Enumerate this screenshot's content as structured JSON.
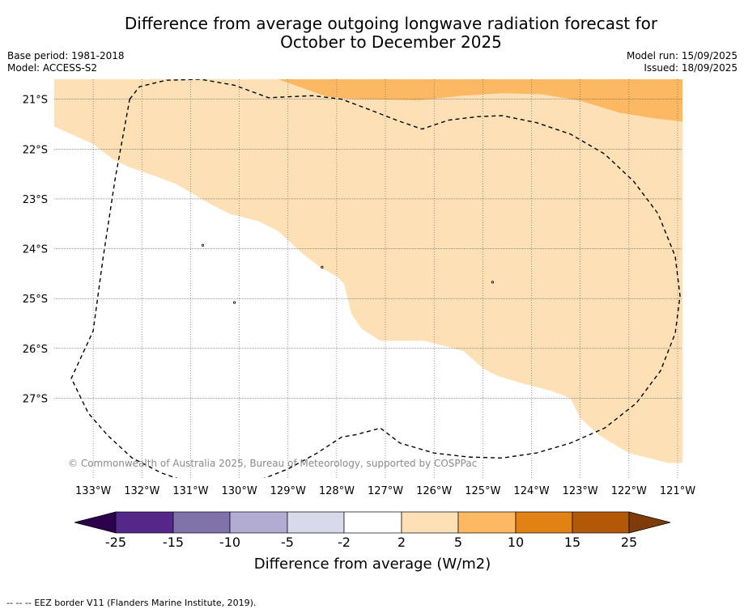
{
  "title": {
    "line1": "Difference from average outgoing longwave radiation forecast for",
    "line2": "October to December 2025"
  },
  "meta": {
    "base_period": "Base period: 1981-2018",
    "model": "Model: ACCESS-S2",
    "model_run": "Model run: 15/09/2025",
    "issued": "Issued: 18/09/2025"
  },
  "map": {
    "lon_range": [
      -133.8,
      -120.9
    ],
    "lat_range": [
      -28.6,
      -20.6
    ],
    "lon_ticks": [
      {
        "value": -133,
        "label": "133°W"
      },
      {
        "value": -132,
        "label": "132°W"
      },
      {
        "value": -131,
        "label": "131°W"
      },
      {
        "value": -130,
        "label": "130°W"
      },
      {
        "value": -129,
        "label": "129°W"
      },
      {
        "value": -128,
        "label": "128°W"
      },
      {
        "value": -127,
        "label": "127°W"
      },
      {
        "value": -126,
        "label": "126°W"
      },
      {
        "value": -125,
        "label": "125°W"
      },
      {
        "value": -124,
        "label": "124°W"
      },
      {
        "value": -123,
        "label": "123°W"
      },
      {
        "value": -122,
        "label": "122°W"
      },
      {
        "value": -121,
        "label": "121°W"
      }
    ],
    "lat_ticks": [
      {
        "value": -21,
        "label": "21°S"
      },
      {
        "value": -22,
        "label": "22°S"
      },
      {
        "value": -23,
        "label": "23°S"
      },
      {
        "value": -24,
        "label": "24°S"
      },
      {
        "value": -25,
        "label": "25°S"
      },
      {
        "value": -26,
        "label": "26°S"
      },
      {
        "value": -27,
        "label": "27°S"
      }
    ],
    "copyright": "© Commonwealth of Australia 2025, Bureau of Meteorology, supported by COSPPac",
    "colors": {
      "band_2_5": "#fde0b5",
      "band_5_10": "#fdb863",
      "eez": "#000000",
      "grid": "#555555"
    },
    "zones": {
      "band_2_5": [
        [
          -133.8,
          -20.6
        ],
        [
          -120.9,
          -20.6
        ],
        [
          -120.9,
          -28.3
        ],
        [
          -121.2,
          -28.3
        ],
        [
          -121.6,
          -28.2
        ],
        [
          -122.0,
          -28.1
        ],
        [
          -122.6,
          -27.75
        ],
        [
          -123.0,
          -27.4
        ],
        [
          -123.2,
          -27.0
        ],
        [
          -123.6,
          -26.85
        ],
        [
          -124.2,
          -26.7
        ],
        [
          -124.7,
          -26.55
        ],
        [
          -125.0,
          -26.4
        ],
        [
          -125.4,
          -26.05
        ],
        [
          -126.2,
          -25.85
        ],
        [
          -127.1,
          -25.85
        ],
        [
          -127.5,
          -25.6
        ],
        [
          -127.7,
          -25.3
        ],
        [
          -127.85,
          -24.7
        ],
        [
          -128.0,
          -24.55
        ],
        [
          -128.3,
          -24.4
        ],
        [
          -128.7,
          -24.1
        ],
        [
          -129.2,
          -23.65
        ],
        [
          -129.6,
          -23.45
        ],
        [
          -130.2,
          -23.3
        ],
        [
          -130.6,
          -23.1
        ],
        [
          -131.3,
          -22.7
        ],
        [
          -131.7,
          -22.55
        ],
        [
          -132.3,
          -22.35
        ],
        [
          -132.6,
          -22.2
        ],
        [
          -133.0,
          -21.9
        ],
        [
          -133.8,
          -21.55
        ]
      ],
      "band_5_10": [
        [
          -129.2,
          -20.6
        ],
        [
          -120.9,
          -20.6
        ],
        [
          -120.9,
          -21.45
        ],
        [
          -121.5,
          -21.38
        ],
        [
          -122.2,
          -21.27
        ],
        [
          -123.0,
          -21.03
        ],
        [
          -123.8,
          -20.9
        ],
        [
          -124.6,
          -20.88
        ],
        [
          -125.4,
          -20.93
        ],
        [
          -126.3,
          -21.02
        ],
        [
          -127.6,
          -21.0
        ],
        [
          -128.2,
          -20.95
        ],
        [
          -129.2,
          -20.6
        ]
      ]
    },
    "eez_border": [
      [
        -132.25,
        -21.0
      ],
      [
        -132.05,
        -20.75
      ],
      [
        -131.5,
        -20.62
      ],
      [
        -130.8,
        -20.6
      ],
      [
        -130.1,
        -20.72
      ],
      [
        -129.4,
        -20.97
      ],
      [
        -128.5,
        -20.93
      ],
      [
        -127.9,
        -21.0
      ],
      [
        -127.3,
        -21.22
      ],
      [
        -126.75,
        -21.43
      ],
      [
        -126.25,
        -21.6
      ],
      [
        -125.7,
        -21.42
      ],
      [
        -125.1,
        -21.35
      ],
      [
        -124.6,
        -21.33
      ],
      [
        -123.9,
        -21.47
      ],
      [
        -123.2,
        -21.7
      ],
      [
        -122.5,
        -22.1
      ],
      [
        -121.9,
        -22.65
      ],
      [
        -121.4,
        -23.3
      ],
      [
        -121.05,
        -24.15
      ],
      [
        -120.95,
        -24.95
      ],
      [
        -121.05,
        -25.7
      ],
      [
        -121.35,
        -26.45
      ],
      [
        -121.85,
        -27.1
      ],
      [
        -122.5,
        -27.6
      ],
      [
        -123.2,
        -27.9
      ],
      [
        -123.9,
        -28.1
      ],
      [
        -124.6,
        -28.2
      ],
      [
        -125.3,
        -28.18
      ],
      [
        -126.0,
        -28.1
      ],
      [
        -126.7,
        -27.9
      ],
      [
        -127.1,
        -27.6
      ],
      [
        -127.6,
        -27.73
      ],
      [
        -127.9,
        -27.78
      ],
      [
        -128.4,
        -28.1
      ],
      [
        -129.0,
        -28.42
      ],
      [
        -129.6,
        -28.65
      ],
      [
        -130.3,
        -28.75
      ],
      [
        -131.0,
        -28.7
      ],
      [
        -131.6,
        -28.5
      ],
      [
        -132.2,
        -28.2
      ],
      [
        -132.7,
        -27.75
      ],
      [
        -133.1,
        -27.3
      ],
      [
        -133.45,
        -26.6
      ],
      [
        -133.0,
        -25.65
      ],
      [
        -132.8,
        -24.2
      ],
      [
        -132.55,
        -22.6
      ],
      [
        -132.25,
        -21.0
      ]
    ],
    "island_marks": [
      [
        -130.75,
        -23.93
      ],
      [
        -130.1,
        -25.08
      ],
      [
        -128.3,
        -24.37
      ],
      [
        -124.8,
        -24.67
      ]
    ]
  },
  "colorbar": {
    "title": "Difference from average (W/m2)",
    "bands": [
      {
        "color": "#2d004b"
      },
      {
        "color": "#542788"
      },
      {
        "color": "#8073ac"
      },
      {
        "color": "#b2abd2"
      },
      {
        "color": "#d8daeb"
      },
      {
        "color": "#ffffff"
      },
      {
        "color": "#fee0b6"
      },
      {
        "color": "#fdb863"
      },
      {
        "color": "#e08214"
      },
      {
        "color": "#b35806"
      },
      {
        "color": "#7f3b08"
      }
    ],
    "labels": [
      "-25",
      "-15",
      "-10",
      "-5",
      "-2",
      "2",
      "5",
      "10",
      "15",
      "25"
    ]
  },
  "footer": {
    "legend_line_symbol": "-- -- --",
    "legend_text": "EEZ border V11 (Flanders Marine Institute, 2019)."
  }
}
